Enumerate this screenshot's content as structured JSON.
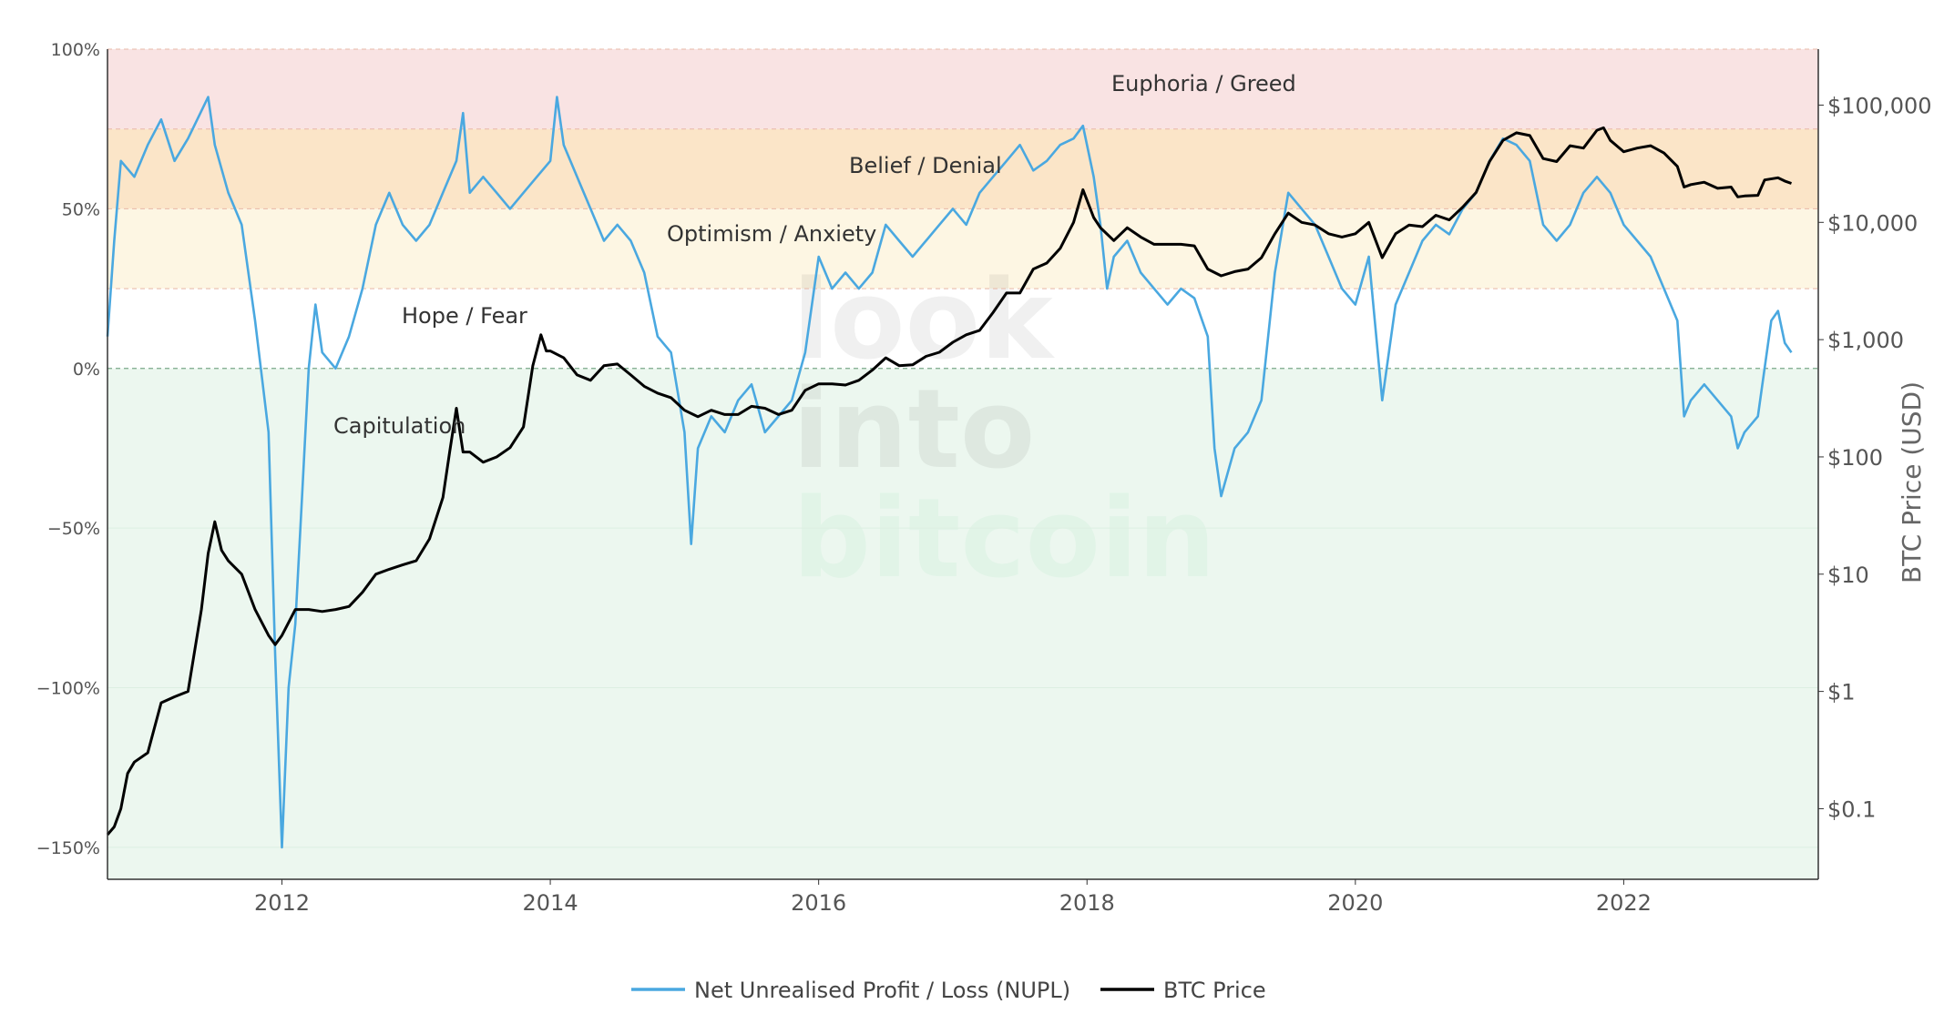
{
  "chart_data": {
    "type": "line",
    "watermark": [
      "look",
      "into",
      "bitcoin"
    ],
    "x_ticks": [
      "2012",
      "2014",
      "2016",
      "2018",
      "2020",
      "2022"
    ],
    "x_range": [
      2010.7,
      2023.45
    ],
    "y_left": {
      "ticks": [
        100,
        50,
        0,
        -50,
        -100,
        -150
      ],
      "tick_labels": [
        "100%",
        "50%",
        "0%",
        "−50%",
        "−100%",
        "−150%"
      ],
      "range": [
        -160,
        100
      ]
    },
    "y_right": {
      "title": "BTC Price (USD)",
      "scale": "log",
      "ticks": [
        100000,
        10000,
        1000,
        100,
        10,
        1,
        0.1
      ],
      "tick_labels": [
        "$100,000",
        "$10,000",
        "$1,000",
        "$100",
        "$10",
        "$1",
        "$0.1"
      ],
      "range": [
        0.025,
        300000
      ]
    },
    "zones": [
      {
        "label": "Euphoria / Greed",
        "from": 75,
        "to": 100,
        "color": "#f9e3e3"
      },
      {
        "label": "Belief / Denial",
        "from": 50,
        "to": 75,
        "color": "#fbe5c8"
      },
      {
        "label": "Optimism / Anxiety",
        "from": 25,
        "to": 50,
        "color": "#fdf6e3"
      },
      {
        "label": "Hope / Fear",
        "from": 0,
        "to": 25,
        "color": "#ffffff"
      },
      {
        "label": "Capitulation",
        "from": -160,
        "to": 0,
        "color": "#ecf7ef"
      }
    ],
    "series": [
      {
        "name": "Net Unrealised Profit / Loss (NUPL)",
        "axis": "left",
        "color": "#4aa8e0",
        "points": [
          [
            2010.7,
            10
          ],
          [
            2010.75,
            40
          ],
          [
            2010.8,
            65
          ],
          [
            2010.9,
            60
          ],
          [
            2011.0,
            70
          ],
          [
            2011.1,
            78
          ],
          [
            2011.2,
            65
          ],
          [
            2011.3,
            72
          ],
          [
            2011.45,
            85
          ],
          [
            2011.5,
            70
          ],
          [
            2011.6,
            55
          ],
          [
            2011.7,
            45
          ],
          [
            2011.8,
            15
          ],
          [
            2011.9,
            -20
          ],
          [
            2011.95,
            -90
          ],
          [
            2012.0,
            -150
          ],
          [
            2012.05,
            -100
          ],
          [
            2012.1,
            -80
          ],
          [
            2012.15,
            -40
          ],
          [
            2012.2,
            0
          ],
          [
            2012.25,
            20
          ],
          [
            2012.3,
            5
          ],
          [
            2012.4,
            0
          ],
          [
            2012.5,
            10
          ],
          [
            2012.6,
            25
          ],
          [
            2012.7,
            45
          ],
          [
            2012.8,
            55
          ],
          [
            2012.9,
            45
          ],
          [
            2013.0,
            40
          ],
          [
            2013.1,
            45
          ],
          [
            2013.2,
            55
          ],
          [
            2013.3,
            65
          ],
          [
            2013.35,
            80
          ],
          [
            2013.4,
            55
          ],
          [
            2013.5,
            60
          ],
          [
            2013.6,
            55
          ],
          [
            2013.7,
            50
          ],
          [
            2013.8,
            55
          ],
          [
            2013.9,
            60
          ],
          [
            2014.0,
            65
          ],
          [
            2014.05,
            85
          ],
          [
            2014.1,
            70
          ],
          [
            2014.2,
            60
          ],
          [
            2014.3,
            50
          ],
          [
            2014.4,
            40
          ],
          [
            2014.5,
            45
          ],
          [
            2014.6,
            40
          ],
          [
            2014.7,
            30
          ],
          [
            2014.8,
            10
          ],
          [
            2014.9,
            5
          ],
          [
            2015.0,
            -20
          ],
          [
            2015.05,
            -55
          ],
          [
            2015.1,
            -25
          ],
          [
            2015.2,
            -15
          ],
          [
            2015.3,
            -20
          ],
          [
            2015.4,
            -10
          ],
          [
            2015.5,
            -5
          ],
          [
            2015.6,
            -20
          ],
          [
            2015.7,
            -15
          ],
          [
            2015.8,
            -10
          ],
          [
            2015.9,
            5
          ],
          [
            2016.0,
            35
          ],
          [
            2016.1,
            25
          ],
          [
            2016.2,
            30
          ],
          [
            2016.3,
            25
          ],
          [
            2016.4,
            30
          ],
          [
            2016.5,
            45
          ],
          [
            2016.6,
            40
          ],
          [
            2016.7,
            35
          ],
          [
            2016.8,
            40
          ],
          [
            2016.9,
            45
          ],
          [
            2017.0,
            50
          ],
          [
            2017.1,
            45
          ],
          [
            2017.2,
            55
          ],
          [
            2017.3,
            60
          ],
          [
            2017.4,
            65
          ],
          [
            2017.5,
            70
          ],
          [
            2017.6,
            62
          ],
          [
            2017.7,
            65
          ],
          [
            2017.8,
            70
          ],
          [
            2017.9,
            72
          ],
          [
            2017.97,
            76
          ],
          [
            2018.05,
            60
          ],
          [
            2018.1,
            45
          ],
          [
            2018.15,
            25
          ],
          [
            2018.2,
            35
          ],
          [
            2018.3,
            40
          ],
          [
            2018.4,
            30
          ],
          [
            2018.5,
            25
          ],
          [
            2018.6,
            20
          ],
          [
            2018.7,
            25
          ],
          [
            2018.8,
            22
          ],
          [
            2018.9,
            10
          ],
          [
            2018.95,
            -25
          ],
          [
            2019.0,
            -40
          ],
          [
            2019.1,
            -25
          ],
          [
            2019.2,
            -20
          ],
          [
            2019.3,
            -10
          ],
          [
            2019.4,
            30
          ],
          [
            2019.5,
            55
          ],
          [
            2019.6,
            50
          ],
          [
            2019.7,
            45
          ],
          [
            2019.8,
            35
          ],
          [
            2019.9,
            25
          ],
          [
            2020.0,
            20
          ],
          [
            2020.1,
            35
          ],
          [
            2020.2,
            -10
          ],
          [
            2020.3,
            20
          ],
          [
            2020.4,
            30
          ],
          [
            2020.5,
            40
          ],
          [
            2020.6,
            45
          ],
          [
            2020.7,
            42
          ],
          [
            2020.8,
            50
          ],
          [
            2020.9,
            55
          ],
          [
            2021.0,
            65
          ],
          [
            2021.1,
            72
          ],
          [
            2021.2,
            70
          ],
          [
            2021.3,
            65
          ],
          [
            2021.4,
            45
          ],
          [
            2021.5,
            40
          ],
          [
            2021.6,
            45
          ],
          [
            2021.7,
            55
          ],
          [
            2021.8,
            60
          ],
          [
            2021.9,
            55
          ],
          [
            2022.0,
            45
          ],
          [
            2022.1,
            40
          ],
          [
            2022.2,
            35
          ],
          [
            2022.3,
            25
          ],
          [
            2022.4,
            15
          ],
          [
            2022.45,
            -15
          ],
          [
            2022.5,
            -10
          ],
          [
            2022.6,
            -5
          ],
          [
            2022.7,
            -10
          ],
          [
            2022.8,
            -15
          ],
          [
            2022.85,
            -25
          ],
          [
            2022.9,
            -20
          ],
          [
            2023.0,
            -15
          ],
          [
            2023.1,
            15
          ],
          [
            2023.15,
            18
          ],
          [
            2023.2,
            8
          ],
          [
            2023.25,
            5
          ]
        ]
      },
      {
        "name": "BTC Price",
        "axis": "right",
        "color": "#000000",
        "points": [
          [
            2010.7,
            0.06
          ],
          [
            2010.75,
            0.07
          ],
          [
            2010.8,
            0.1
          ],
          [
            2010.85,
            0.2
          ],
          [
            2010.9,
            0.25
          ],
          [
            2011.0,
            0.3
          ],
          [
            2011.1,
            0.8
          ],
          [
            2011.2,
            0.9
          ],
          [
            2011.3,
            1.0
          ],
          [
            2011.4,
            5
          ],
          [
            2011.45,
            15
          ],
          [
            2011.5,
            28
          ],
          [
            2011.55,
            16
          ],
          [
            2011.6,
            13
          ],
          [
            2011.7,
            10
          ],
          [
            2011.8,
            5
          ],
          [
            2011.9,
            3
          ],
          [
            2011.95,
            2.5
          ],
          [
            2012.0,
            3
          ],
          [
            2012.1,
            5
          ],
          [
            2012.2,
            5
          ],
          [
            2012.3,
            4.8
          ],
          [
            2012.4,
            5
          ],
          [
            2012.5,
            5.3
          ],
          [
            2012.6,
            7
          ],
          [
            2012.7,
            10
          ],
          [
            2012.8,
            11
          ],
          [
            2012.9,
            12
          ],
          [
            2013.0,
            13
          ],
          [
            2013.1,
            20
          ],
          [
            2013.2,
            45
          ],
          [
            2013.25,
            110
          ],
          [
            2013.3,
            260
          ],
          [
            2013.35,
            110
          ],
          [
            2013.4,
            110
          ],
          [
            2013.5,
            90
          ],
          [
            2013.6,
            100
          ],
          [
            2013.7,
            120
          ],
          [
            2013.8,
            180
          ],
          [
            2013.87,
            600
          ],
          [
            2013.93,
            1100
          ],
          [
            2013.97,
            800
          ],
          [
            2014.0,
            800
          ],
          [
            2014.1,
            700
          ],
          [
            2014.2,
            500
          ],
          [
            2014.3,
            450
          ],
          [
            2014.4,
            600
          ],
          [
            2014.5,
            620
          ],
          [
            2014.6,
            500
          ],
          [
            2014.7,
            400
          ],
          [
            2014.8,
            350
          ],
          [
            2014.9,
            320
          ],
          [
            2015.0,
            250
          ],
          [
            2015.1,
            220
          ],
          [
            2015.2,
            250
          ],
          [
            2015.3,
            230
          ],
          [
            2015.4,
            230
          ],
          [
            2015.5,
            270
          ],
          [
            2015.6,
            260
          ],
          [
            2015.7,
            230
          ],
          [
            2015.8,
            250
          ],
          [
            2015.9,
            370
          ],
          [
            2016.0,
            420
          ],
          [
            2016.1,
            420
          ],
          [
            2016.2,
            410
          ],
          [
            2016.3,
            450
          ],
          [
            2016.4,
            550
          ],
          [
            2016.5,
            700
          ],
          [
            2016.6,
            600
          ],
          [
            2016.7,
            610
          ],
          [
            2016.8,
            720
          ],
          [
            2016.9,
            780
          ],
          [
            2017.0,
            950
          ],
          [
            2017.1,
            1100
          ],
          [
            2017.2,
            1200
          ],
          [
            2017.3,
            1700
          ],
          [
            2017.4,
            2500
          ],
          [
            2017.5,
            2500
          ],
          [
            2017.6,
            4000
          ],
          [
            2017.7,
            4500
          ],
          [
            2017.8,
            6000
          ],
          [
            2017.9,
            10000
          ],
          [
            2017.97,
            19000
          ],
          [
            2018.05,
            11000
          ],
          [
            2018.1,
            9000
          ],
          [
            2018.2,
            7000
          ],
          [
            2018.3,
            9000
          ],
          [
            2018.4,
            7500
          ],
          [
            2018.5,
            6500
          ],
          [
            2018.6,
            6500
          ],
          [
            2018.7,
            6500
          ],
          [
            2018.8,
            6300
          ],
          [
            2018.9,
            4000
          ],
          [
            2019.0,
            3500
          ],
          [
            2019.1,
            3800
          ],
          [
            2019.2,
            4000
          ],
          [
            2019.3,
            5000
          ],
          [
            2019.4,
            8000
          ],
          [
            2019.5,
            12000
          ],
          [
            2019.6,
            10000
          ],
          [
            2019.7,
            9500
          ],
          [
            2019.8,
            8000
          ],
          [
            2019.9,
            7500
          ],
          [
            2020.0,
            8000
          ],
          [
            2020.1,
            10000
          ],
          [
            2020.2,
            5000
          ],
          [
            2020.3,
            8000
          ],
          [
            2020.4,
            9500
          ],
          [
            2020.5,
            9200
          ],
          [
            2020.6,
            11500
          ],
          [
            2020.7,
            10500
          ],
          [
            2020.8,
            13500
          ],
          [
            2020.9,
            18000
          ],
          [
            2021.0,
            33000
          ],
          [
            2021.1,
            50000
          ],
          [
            2021.2,
            58000
          ],
          [
            2021.3,
            55000
          ],
          [
            2021.4,
            35000
          ],
          [
            2021.5,
            33000
          ],
          [
            2021.6,
            45000
          ],
          [
            2021.7,
            43000
          ],
          [
            2021.8,
            61000
          ],
          [
            2021.85,
            64000
          ],
          [
            2021.9,
            50000
          ],
          [
            2022.0,
            40000
          ],
          [
            2022.1,
            43000
          ],
          [
            2022.2,
            45000
          ],
          [
            2022.3,
            39000
          ],
          [
            2022.4,
            30000
          ],
          [
            2022.45,
            20000
          ],
          [
            2022.5,
            21000
          ],
          [
            2022.6,
            22000
          ],
          [
            2022.7,
            19500
          ],
          [
            2022.8,
            20000
          ],
          [
            2022.85,
            16500
          ],
          [
            2022.9,
            16800
          ],
          [
            2023.0,
            17000
          ],
          [
            2023.05,
            23000
          ],
          [
            2023.15,
            24000
          ],
          [
            2023.2,
            22500
          ],
          [
            2023.25,
            21500
          ]
        ]
      }
    ],
    "legend": {
      "placement": "bottom-center",
      "entries": [
        "Net Unrealised Profit / Loss (NUPL)",
        "BTC Price"
      ]
    }
  }
}
